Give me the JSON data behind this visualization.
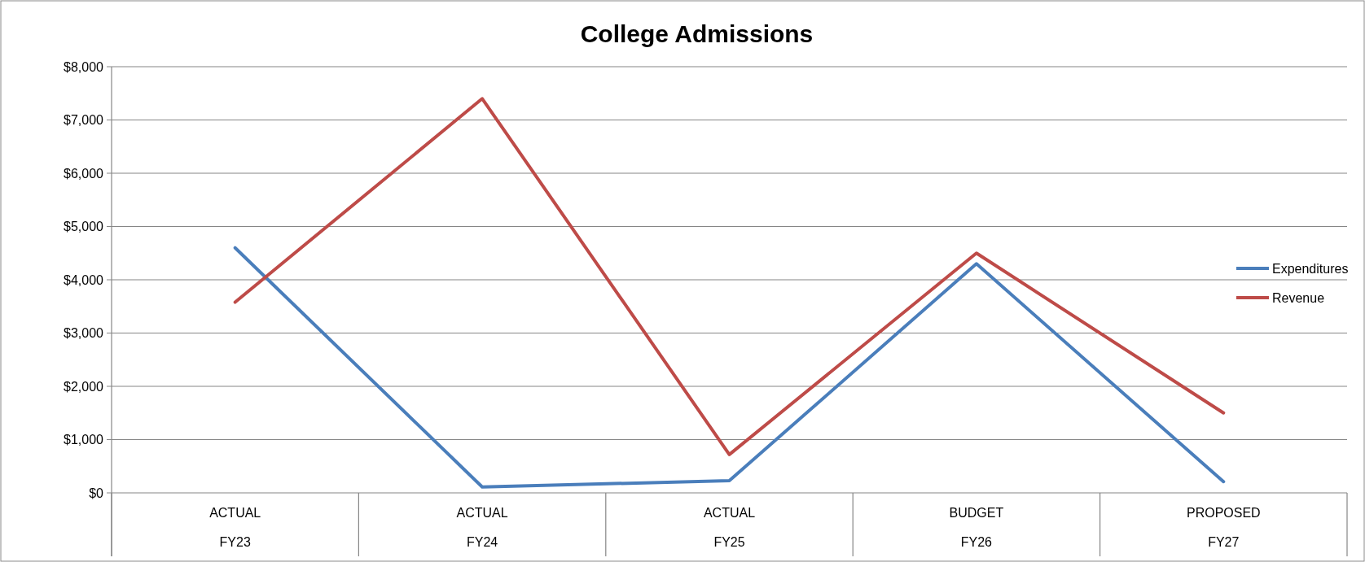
{
  "chart_data": {
    "type": "line",
    "title": "College Admissions",
    "categories": [
      "ACTUAL\nFY23",
      "ACTUAL\nFY24",
      "ACTUAL\nFY25",
      "BUDGET\nFY26",
      "PROPOSED\nFY27"
    ],
    "series": [
      {
        "name": "Expenditures",
        "color": "#4a7ebb",
        "values": [
          4600,
          110,
          230,
          4300,
          210
        ]
      },
      {
        "name": "Revenue",
        "color": "#be4b48",
        "values": [
          3580,
          7400,
          720,
          4500,
          1500
        ]
      }
    ],
    "ylim": [
      0,
      8000
    ],
    "yticks": [
      {
        "value": 0,
        "label": "$0"
      },
      {
        "value": 1000,
        "label": "$1,000"
      },
      {
        "value": 2000,
        "label": "$2,000"
      },
      {
        "value": 3000,
        "label": "$3,000"
      },
      {
        "value": 4000,
        "label": "$4,000"
      },
      {
        "value": 5000,
        "label": "$5,000"
      },
      {
        "value": 6000,
        "label": "$6,000"
      },
      {
        "value": 7000,
        "label": "$7,000"
      },
      {
        "value": 8000,
        "label": "$8,000"
      }
    ],
    "grid": "y",
    "legend": "right",
    "marker": "none",
    "line_style": "solid"
  }
}
